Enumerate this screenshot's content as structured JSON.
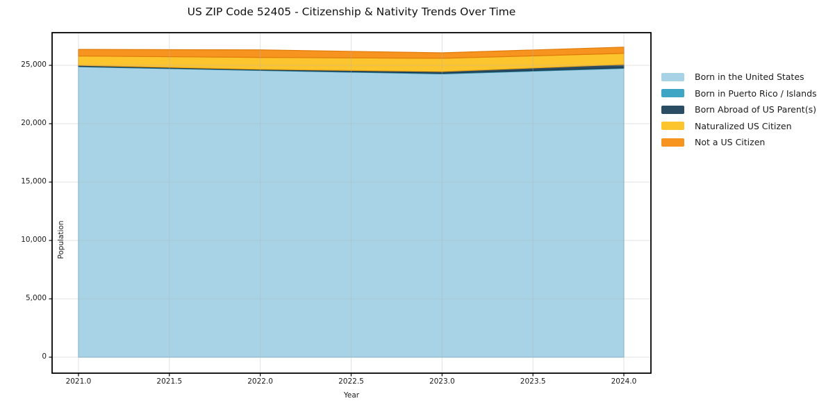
{
  "title": "US ZIP Code 52405 - Citizenship & Nativity Trends Over Time",
  "chart_data": {
    "type": "area",
    "stacked": true,
    "title": "US ZIP Code 52405 - Citizenship & Nativity Trends Over Time",
    "xlabel": "Year",
    "ylabel": "Population",
    "x": [
      2021,
      2022,
      2023,
      2024
    ],
    "series": [
      {
        "name": "Born in the United States",
        "color": "#a8d3e6",
        "edge": "#84bcd8",
        "values": [
          24880,
          24560,
          24265,
          24740
        ]
      },
      {
        "name": "Born in Puerto Rico / Islands",
        "color": "#3fa5c4",
        "edge": "#2e87a5",
        "values": [
          40,
          40,
          55,
          55
        ]
      },
      {
        "name": "Born Abroad of US Parent(s)",
        "color": "#2b4d63",
        "edge": "#1f3a4c",
        "values": [
          80,
          60,
          150,
          280
        ]
      },
      {
        "name": "Naturalized US Citizen",
        "color": "#fcc42d",
        "edge": "#eda414",
        "values": [
          800,
          1020,
          1130,
          950
        ]
      },
      {
        "name": "Not a US Citizen",
        "color": "#f79420",
        "edge": "#e07b0a",
        "values": [
          565,
          645,
          475,
          535
        ]
      }
    ],
    "x_ticks": [
      {
        "value": 2021.0,
        "label": "2021.0"
      },
      {
        "value": 2021.5,
        "label": "2021.5"
      },
      {
        "value": 2022.0,
        "label": "2022.0"
      },
      {
        "value": 2022.5,
        "label": "2022.5"
      },
      {
        "value": 2023.0,
        "label": "2023.0"
      },
      {
        "value": 2023.5,
        "label": "2023.5"
      },
      {
        "value": 2024.0,
        "label": "2024.0"
      }
    ],
    "y_ticks": [
      {
        "value": 0,
        "label": "0"
      },
      {
        "value": 5000,
        "label": "5,000"
      },
      {
        "value": 10000,
        "label": "10,000"
      },
      {
        "value": 15000,
        "label": "15,000"
      },
      {
        "value": 20000,
        "label": "20,000"
      },
      {
        "value": 25000,
        "label": "25,000"
      }
    ],
    "xlim": [
      2020.855,
      2024.149
    ],
    "ylim": [
      -1370,
      27800
    ],
    "grid": true,
    "grid_color": "rgba(180,180,180,0.38)",
    "frame_color": "#000000",
    "legend_position": "right"
  }
}
